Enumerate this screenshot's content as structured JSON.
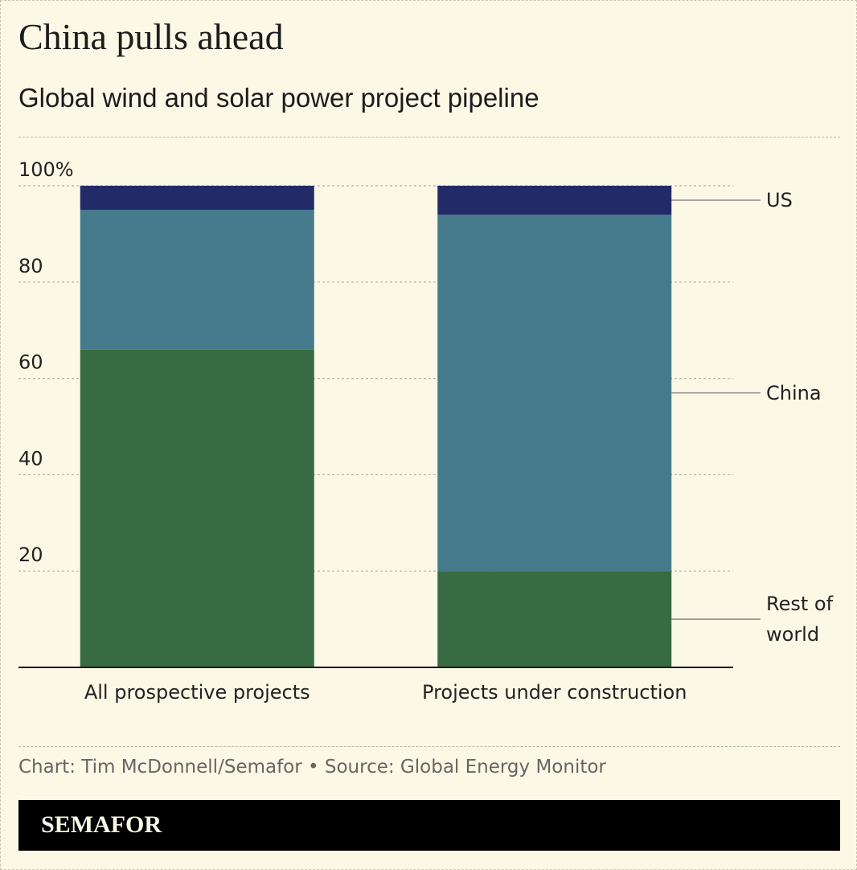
{
  "chart_data": {
    "type": "stacked_bar",
    "title": "China pulls ahead",
    "subtitle": "Global wind and solar power project pipeline",
    "categories": [
      "All prospective projects",
      "Projects under construction"
    ],
    "series": [
      {
        "name": "Rest of world",
        "color": "#386b41",
        "values": [
          66,
          20
        ]
      },
      {
        "name": "China",
        "color": "#457a8c",
        "values": [
          29,
          74
        ]
      },
      {
        "name": "US",
        "color": "#222b68",
        "values": [
          5,
          6
        ]
      }
    ],
    "ylim": [
      0,
      100
    ],
    "yticks": [
      {
        "value": 20,
        "label": "20"
      },
      {
        "value": 40,
        "label": "40"
      },
      {
        "value": 60,
        "label": "60"
      },
      {
        "value": 80,
        "label": "80"
      },
      {
        "value": 100,
        "label": "100%"
      }
    ],
    "grid": true,
    "source": "Chart: Tim McDonnell/Semafor • Source: Global Energy Monitor",
    "brand": "SEMAFOR"
  }
}
